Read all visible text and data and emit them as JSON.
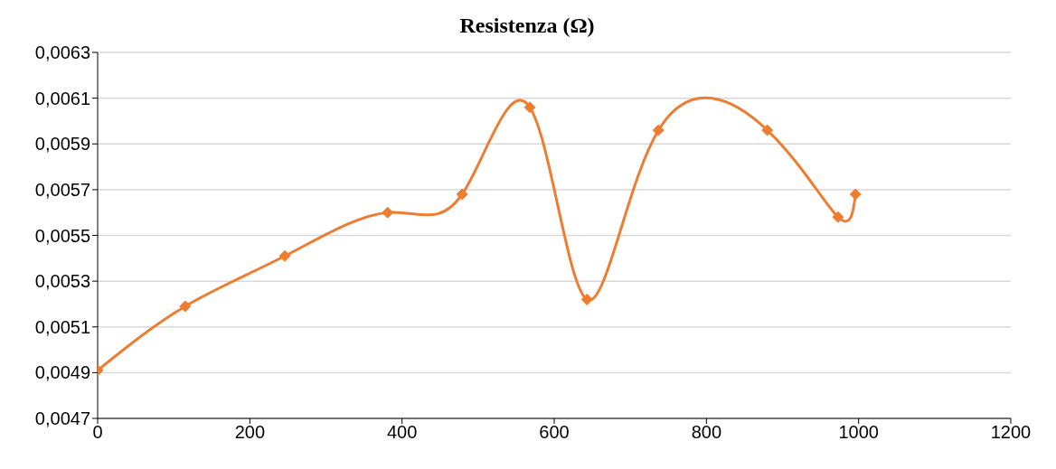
{
  "chart_data": {
    "type": "line",
    "title": "Resistenza (Ω)",
    "x": [
      0,
      115,
      246,
      381,
      479,
      568,
      643,
      737,
      880,
      973,
      996
    ],
    "series": [
      {
        "color": "#ed7d31",
        "values": [
          0.00491,
          0.00519,
          0.00541,
          0.0056,
          0.00568,
          0.00606,
          0.00522,
          0.00596,
          0.00596,
          0.00558,
          0.00568
        ]
      }
    ],
    "xlim": [
      0,
      1200
    ],
    "xticks": [
      0,
      200,
      400,
      600,
      800,
      1000,
      1200
    ],
    "ylim": [
      0.0047,
      0.0063
    ],
    "yticks": [
      {
        "value": 0.0047,
        "label": "0,0047"
      },
      {
        "value": 0.0049,
        "label": "0,0049"
      },
      {
        "value": 0.0051,
        "label": "0,0051"
      },
      {
        "value": 0.0053,
        "label": "0,0053"
      },
      {
        "value": 0.0055,
        "label": "0,0055"
      },
      {
        "value": 0.0057,
        "label": "0,0057"
      },
      {
        "value": 0.0059,
        "label": "0,0059"
      },
      {
        "value": 0.0061,
        "label": "0,0061"
      },
      {
        "value": 0.0063,
        "label": "0,0063"
      }
    ],
    "grid": "y",
    "marker": "diamond",
    "line_style": "solid"
  }
}
